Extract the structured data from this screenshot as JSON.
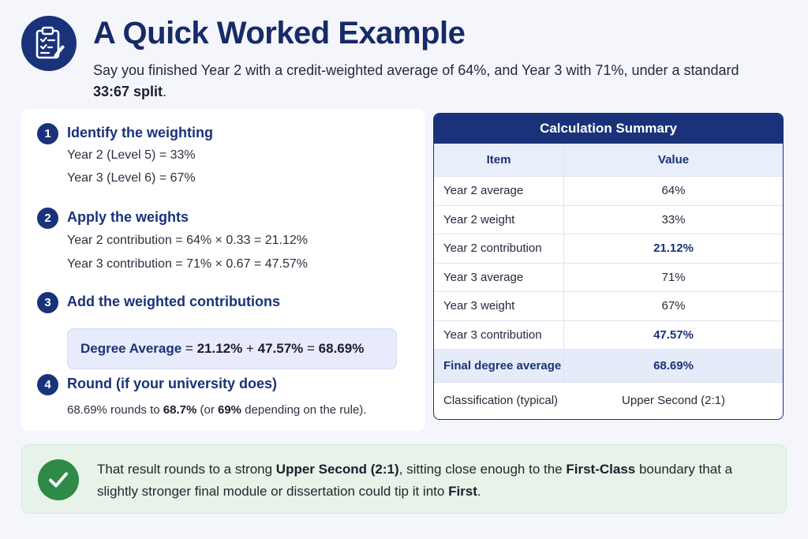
{
  "header": {
    "icon": "clipboard-checklist-icon",
    "title": "A Quick Worked Example",
    "subtitle_prefix": "Say you finished Year 2 with a credit-weighted average of 64%, and Year 3 with 71%, under a standard ",
    "subtitle_bold": "33:67 split",
    "subtitle_suffix": "."
  },
  "steps": [
    {
      "number": "1",
      "title": "Identify the weighting",
      "lines": [
        "Year 2 (Level 5) = 33%",
        "Year 3 (Level 6) = 67%"
      ]
    },
    {
      "number": "2",
      "title": "Apply the weights",
      "lines": [
        "Year 2 contribution = 64% × 0.33 = 21.12%",
        "Year 3 contribution = 71% × 0.67 = 47.57%"
      ]
    },
    {
      "number": "3",
      "title": "Add the weighted contributions",
      "formula": {
        "label": "Degree Average",
        "eq1": " = ",
        "a": "21.12%",
        "plus": " + ",
        "b": "47.57%",
        "eq2": " = ",
        "result": "68.69%"
      }
    },
    {
      "number": "4",
      "title": "Round (if your university does)",
      "text_prefix": "68.69% rounds to ",
      "text_bold1": "68.7%",
      "text_mid": " (or ",
      "text_bold2": "69%",
      "text_suffix": " depending on the rule)."
    }
  ],
  "summary": {
    "title": "Calculation Summary",
    "headers": [
      "Item",
      "Value"
    ],
    "rows": [
      {
        "item": "Year 2 average",
        "value": "64%"
      },
      {
        "item": "Year 2 weight",
        "value": "33%"
      },
      {
        "item": "Year 2 contribution",
        "value": "21.12%"
      },
      {
        "item": "Year 3 average",
        "value": "71%"
      },
      {
        "item": "Year 3 weight",
        "value": "67%"
      },
      {
        "item": "Year 3 contribution",
        "value": "47.57%"
      }
    ],
    "final": {
      "item": "Final degree average",
      "value": "68.69%"
    },
    "classification": {
      "item": "Classification (typical)",
      "value": "Upper Second (2:1)"
    }
  },
  "callout": {
    "icon": "check-circle-icon",
    "p1": "That result rounds to a strong ",
    "b1": "Upper Second (2:1)",
    "p2": ", sitting close enough to the ",
    "b2": "First-Class",
    "p3": " boundary that a slightly stronger final module or dissertation could tip it into ",
    "b3": "First",
    "p4": "."
  },
  "colors": {
    "primary": "#1a3279",
    "success": "#2e8a47",
    "callout_bg": "#e7f2e8",
    "formula_bg": "#e7ebfb"
  }
}
